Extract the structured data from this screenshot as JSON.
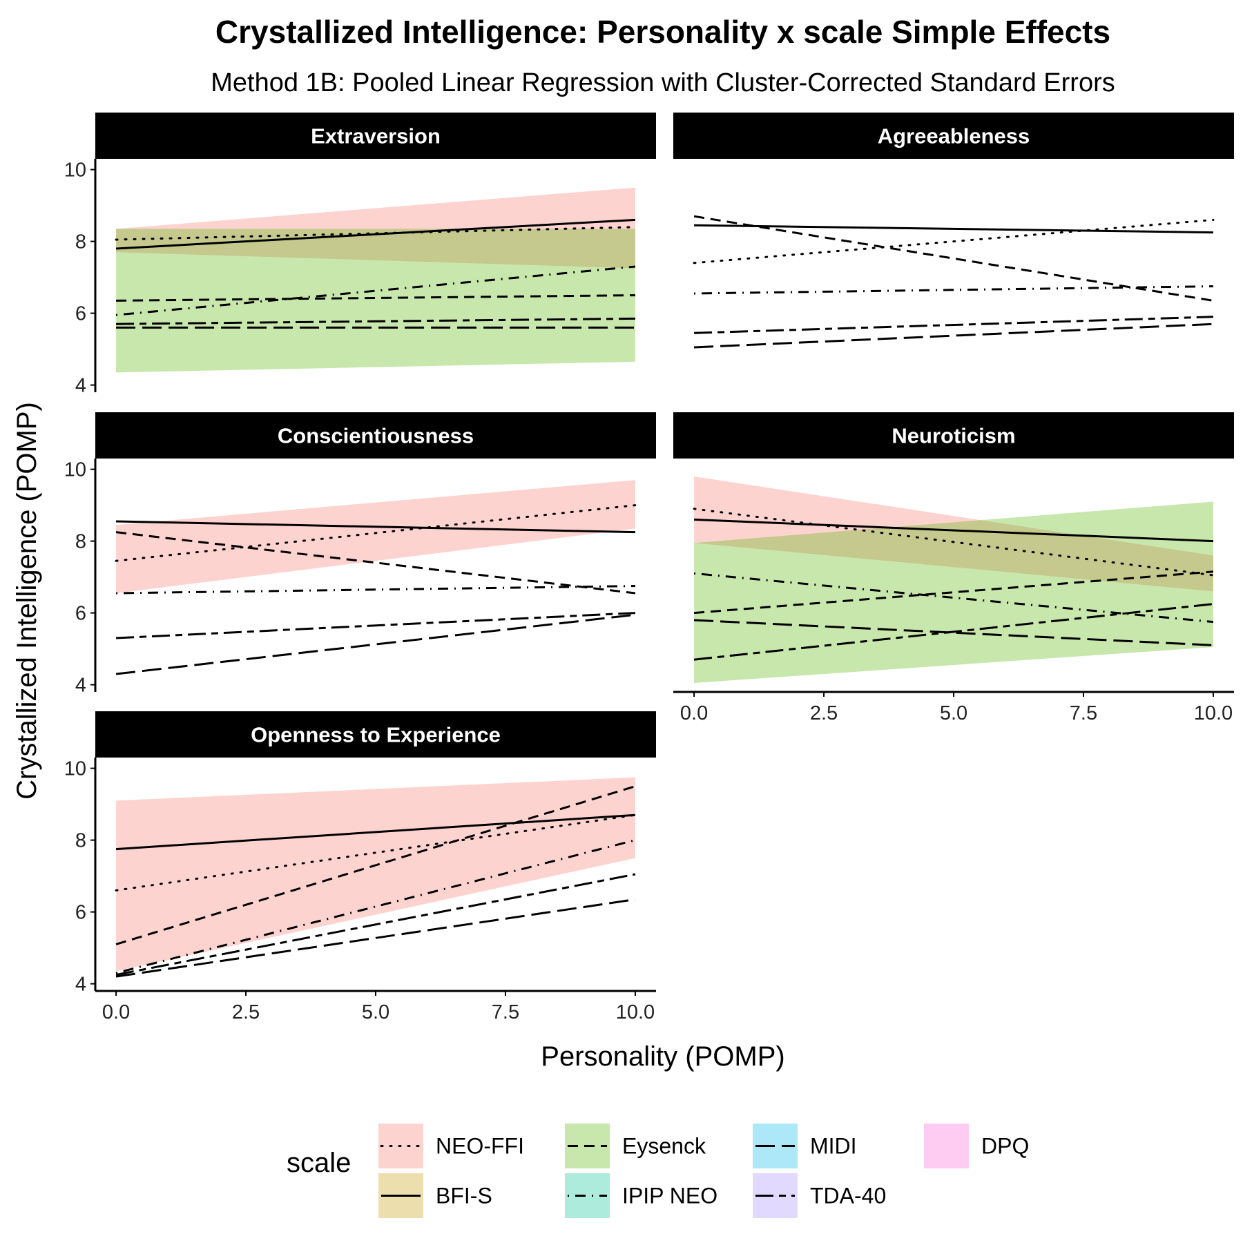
{
  "title": "Crystallized Intelligence: Personality x scale Simple Effects",
  "subtitle": "Method 1B: Pooled Linear Regression with Cluster-Corrected Standard Errors",
  "xlabel": "Personality (POMP)",
  "ylabel": "Crystallized Intelligence (POMP)",
  "legend": {
    "title": "scale",
    "entries": [
      {
        "label": "NEO-FFI",
        "fill": "#F8766D",
        "dash": "dotted"
      },
      {
        "label": "BFI-S",
        "fill": "#C49A00",
        "dash": "solid"
      },
      {
        "label": "Eysenck",
        "fill": "#53B400",
        "dash": "dashed"
      },
      {
        "label": "IPIP NEO",
        "fill": "#00C094",
        "dash": "dotdash"
      },
      {
        "label": "MIDI",
        "fill": "#00B6EB",
        "dash": "longdash"
      },
      {
        "label": "TDA-40",
        "fill": "#A58AFF",
        "dash": "twodash"
      },
      {
        "label": "DPQ",
        "fill": "#FB61D7",
        "dash": "none"
      }
    ]
  },
  "chart_data": {
    "type": "line",
    "xlim": [
      -0.4,
      10.4
    ],
    "ylim": [
      3.8,
      10.3
    ],
    "xticks": [
      "0.0",
      "2.5",
      "5.0",
      "7.5",
      "10.0"
    ],
    "yticks": [
      "4",
      "6",
      "8",
      "10"
    ],
    "panels": [
      {
        "name": "Extraversion",
        "series": [
          {
            "scale": "NEO-FFI",
            "x": [
              0,
              10
            ],
            "y": [
              8.05,
              8.4
            ],
            "ribbon": [
              [
                7.7,
                8.35
              ],
              [
                7.25,
                9.5
              ]
            ]
          },
          {
            "scale": "BFI-S",
            "x": [
              0,
              10
            ],
            "y": [
              7.8,
              8.6
            ]
          },
          {
            "scale": "Eysenck",
            "x": [
              0,
              10
            ],
            "y": [
              6.35,
              6.5
            ],
            "ribbon": [
              [
                4.35,
                8.35
              ],
              [
                4.65,
                8.35
              ]
            ]
          },
          {
            "scale": "IPIP NEO",
            "x": [
              0,
              10
            ],
            "y": [
              5.95,
              7.3
            ]
          },
          {
            "scale": "MIDI",
            "x": [
              0,
              10
            ],
            "y": [
              5.6,
              5.6
            ]
          },
          {
            "scale": "TDA-40",
            "x": [
              0,
              10
            ],
            "y": [
              5.7,
              5.85
            ]
          }
        ]
      },
      {
        "name": "Agreeableness",
        "series": [
          {
            "scale": "NEO-FFI",
            "x": [
              0,
              10
            ],
            "y": [
              7.4,
              8.6
            ]
          },
          {
            "scale": "BFI-S",
            "x": [
              0,
              10
            ],
            "y": [
              8.45,
              8.25
            ]
          },
          {
            "scale": "Eysenck",
            "x": [
              0,
              10
            ],
            "y": [
              8.7,
              6.35
            ]
          },
          {
            "scale": "IPIP NEO",
            "x": [
              0,
              10
            ],
            "y": [
              6.55,
              6.75
            ]
          },
          {
            "scale": "MIDI",
            "x": [
              0,
              10
            ],
            "y": [
              5.05,
              5.7
            ]
          },
          {
            "scale": "TDA-40",
            "x": [
              0,
              10
            ],
            "y": [
              5.45,
              5.9
            ]
          }
        ]
      },
      {
        "name": "Conscientiousness",
        "series": [
          {
            "scale": "NEO-FFI",
            "x": [
              0,
              10
            ],
            "y": [
              7.45,
              9.0
            ],
            "ribbon": [
              [
                6.55,
                8.45
              ],
              [
                8.35,
                9.7
              ]
            ]
          },
          {
            "scale": "BFI-S",
            "x": [
              0,
              10
            ],
            "y": [
              8.55,
              8.25
            ]
          },
          {
            "scale": "Eysenck",
            "x": [
              0,
              10
            ],
            "y": [
              8.25,
              6.55
            ]
          },
          {
            "scale": "IPIP NEO",
            "x": [
              0,
              10
            ],
            "y": [
              6.55,
              6.75
            ]
          },
          {
            "scale": "MIDI",
            "x": [
              0,
              10
            ],
            "y": [
              4.3,
              5.95
            ]
          },
          {
            "scale": "TDA-40",
            "x": [
              0,
              10
            ],
            "y": [
              5.3,
              6.0
            ]
          }
        ]
      },
      {
        "name": "Neuroticism",
        "series": [
          {
            "scale": "NEO-FFI",
            "x": [
              0,
              10
            ],
            "y": [
              8.9,
              7.05
            ],
            "ribbon": [
              [
                7.95,
                9.8
              ],
              [
                6.6,
                7.6
              ]
            ]
          },
          {
            "scale": "BFI-S",
            "x": [
              0,
              10
            ],
            "y": [
              8.6,
              8.0
            ]
          },
          {
            "scale": "Eysenck",
            "x": [
              0,
              10
            ],
            "y": [
              6.0,
              7.15
            ],
            "ribbon": [
              [
                4.05,
                7.95
              ],
              [
                5.05,
                9.1
              ]
            ]
          },
          {
            "scale": "IPIP NEO",
            "x": [
              0,
              10
            ],
            "y": [
              7.1,
              5.75
            ]
          },
          {
            "scale": "MIDI",
            "x": [
              0,
              10
            ],
            "y": [
              5.8,
              5.1
            ]
          },
          {
            "scale": "TDA-40",
            "x": [
              0,
              10
            ],
            "y": [
              4.7,
              6.25
            ]
          }
        ]
      },
      {
        "name": "Openness to Experience",
        "series": [
          {
            "scale": "NEO-FFI",
            "x": [
              0,
              10
            ],
            "y": [
              6.6,
              8.7
            ],
            "ribbon": [
              [
                4.35,
                9.1
              ],
              [
                7.5,
                9.75
              ]
            ]
          },
          {
            "scale": "BFI-S",
            "x": [
              0,
              10
            ],
            "y": [
              7.75,
              8.7
            ]
          },
          {
            "scale": "Eysenck",
            "x": [
              0,
              10
            ],
            "y": [
              5.1,
              9.5
            ]
          },
          {
            "scale": "IPIP NEO",
            "x": [
              0,
              10
            ],
            "y": [
              4.3,
              8.0
            ]
          },
          {
            "scale": "MIDI",
            "x": [
              0,
              10
            ],
            "y": [
              4.2,
              6.35
            ]
          },
          {
            "scale": "TDA-40",
            "x": [
              0,
              10
            ],
            "y": [
              4.25,
              7.05
            ]
          }
        ]
      }
    ]
  }
}
